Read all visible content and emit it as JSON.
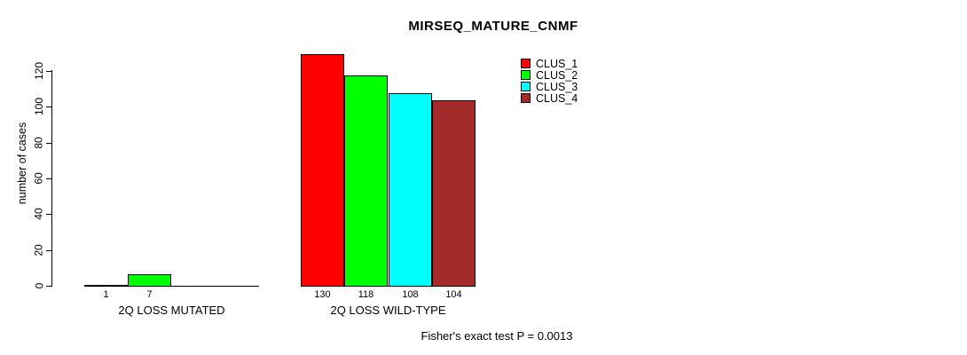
{
  "chart_data": {
    "type": "bar",
    "title": "MIRSEQ_MATURE_CNMF",
    "ylabel": "number of cases",
    "xlabel": "",
    "ylim": [
      0,
      130
    ],
    "yticks": [
      0,
      20,
      40,
      60,
      80,
      100,
      120
    ],
    "grid": false,
    "legend_position": "top-right",
    "categories": [
      "2Q LOSS MUTATED",
      "2Q LOSS WILD-TYPE"
    ],
    "series": [
      {
        "name": "CLUS_1",
        "color": "#FF0000",
        "values": [
          1,
          130
        ]
      },
      {
        "name": "CLUS_2",
        "color": "#00FF00",
        "values": [
          7,
          118
        ]
      },
      {
        "name": "CLUS_3",
        "color": "#00FFFF",
        "values": [
          0,
          108
        ]
      },
      {
        "name": "CLUS_4",
        "color": "#A52A2A",
        "values": [
          0,
          104
        ]
      }
    ],
    "bar_value_labels": [
      [
        "1",
        "7",
        "",
        ""
      ],
      [
        "130",
        "118",
        "108",
        "104"
      ]
    ],
    "footnote": "Fisher's exact test P = 0.0013",
    "colors": {
      "axis": "#000000",
      "text": "#000000",
      "background": "#FFFFFF"
    }
  }
}
